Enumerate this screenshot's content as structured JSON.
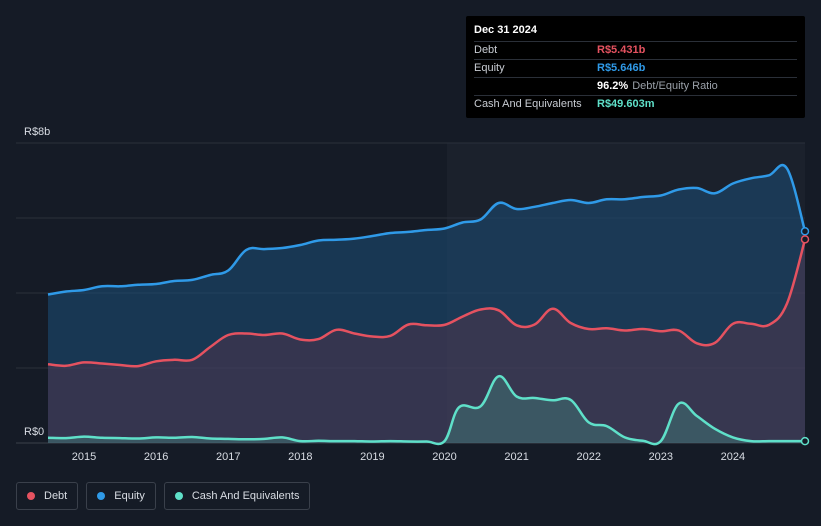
{
  "tooltip": {
    "date": "Dec 31 2024",
    "rows": [
      {
        "label": "Debt",
        "value": "R$5.431b",
        "color": "#e55260"
      },
      {
        "label": "Equity",
        "value": "R$5.646b",
        "color": "#2f9ae8"
      },
      {
        "label": "",
        "value": "96.2%",
        "suffix": "Debt/Equity Ratio",
        "color": "#ffffff"
      },
      {
        "label": "Cash And Equivalents",
        "value": "R$49.603m",
        "color": "#5fe0c9"
      }
    ]
  },
  "legend": [
    {
      "label": "Debt",
      "color": "#e55260"
    },
    {
      "label": "Equity",
      "color": "#2f9ae8"
    },
    {
      "label": "Cash And Equivalents",
      "color": "#5fe0c9"
    }
  ],
  "chart_data": {
    "type": "area",
    "ylabel_top": "R$8b",
    "ylabel_bottom": "R$0",
    "ylim": [
      0,
      8
    ],
    "xlim": [
      2014.5,
      2025.0
    ],
    "x_ticks": [
      "2015",
      "2016",
      "2017",
      "2018",
      "2019",
      "2020",
      "2021",
      "2022",
      "2023",
      "2024"
    ],
    "x_tick_values": [
      2015,
      2016,
      2017,
      2018,
      2019,
      2020,
      2021,
      2022,
      2023,
      2024
    ],
    "grid": true,
    "series": [
      {
        "name": "Equity",
        "color": "#2f9ae8",
        "points": [
          [
            2014.5,
            3.96
          ],
          [
            2014.75,
            4.04
          ],
          [
            2015.0,
            4.08
          ],
          [
            2015.25,
            4.18
          ],
          [
            2015.5,
            4.18
          ],
          [
            2015.75,
            4.22
          ],
          [
            2016.0,
            4.24
          ],
          [
            2016.25,
            4.32
          ],
          [
            2016.5,
            4.35
          ],
          [
            2016.75,
            4.48
          ],
          [
            2017.0,
            4.6
          ],
          [
            2017.25,
            5.15
          ],
          [
            2017.5,
            5.17
          ],
          [
            2017.75,
            5.2
          ],
          [
            2018.0,
            5.28
          ],
          [
            2018.25,
            5.4
          ],
          [
            2018.5,
            5.42
          ],
          [
            2018.75,
            5.45
          ],
          [
            2019.0,
            5.52
          ],
          [
            2019.25,
            5.6
          ],
          [
            2019.5,
            5.63
          ],
          [
            2019.75,
            5.68
          ],
          [
            2020.0,
            5.72
          ],
          [
            2020.25,
            5.88
          ],
          [
            2020.5,
            5.96
          ],
          [
            2020.75,
            6.4
          ],
          [
            2021.0,
            6.24
          ],
          [
            2021.25,
            6.3
          ],
          [
            2021.5,
            6.4
          ],
          [
            2021.75,
            6.48
          ],
          [
            2022.0,
            6.4
          ],
          [
            2022.25,
            6.5
          ],
          [
            2022.5,
            6.5
          ],
          [
            2022.75,
            6.56
          ],
          [
            2023.0,
            6.6
          ],
          [
            2023.25,
            6.76
          ],
          [
            2023.5,
            6.8
          ],
          [
            2023.75,
            6.66
          ],
          [
            2024.0,
            6.92
          ],
          [
            2024.25,
            7.06
          ],
          [
            2024.5,
            7.14
          ],
          [
            2024.75,
            7.32
          ],
          [
            2025.0,
            5.646
          ]
        ]
      },
      {
        "name": "Debt",
        "color": "#e55260",
        "points": [
          [
            2014.5,
            2.1
          ],
          [
            2014.75,
            2.06
          ],
          [
            2015.0,
            2.15
          ],
          [
            2015.25,
            2.12
          ],
          [
            2015.5,
            2.08
          ],
          [
            2015.75,
            2.05
          ],
          [
            2016.0,
            2.18
          ],
          [
            2016.25,
            2.22
          ],
          [
            2016.5,
            2.22
          ],
          [
            2016.75,
            2.56
          ],
          [
            2017.0,
            2.88
          ],
          [
            2017.25,
            2.92
          ],
          [
            2017.5,
            2.88
          ],
          [
            2017.75,
            2.92
          ],
          [
            2018.0,
            2.76
          ],
          [
            2018.25,
            2.77
          ],
          [
            2018.5,
            3.02
          ],
          [
            2018.75,
            2.92
          ],
          [
            2019.0,
            2.84
          ],
          [
            2019.25,
            2.86
          ],
          [
            2019.5,
            3.16
          ],
          [
            2019.75,
            3.14
          ],
          [
            2020.0,
            3.15
          ],
          [
            2020.25,
            3.37
          ],
          [
            2020.5,
            3.56
          ],
          [
            2020.75,
            3.54
          ],
          [
            2021.0,
            3.14
          ],
          [
            2021.25,
            3.16
          ],
          [
            2021.5,
            3.58
          ],
          [
            2021.75,
            3.2
          ],
          [
            2022.0,
            3.04
          ],
          [
            2022.25,
            3.06
          ],
          [
            2022.5,
            3.0
          ],
          [
            2022.75,
            3.04
          ],
          [
            2023.0,
            2.98
          ],
          [
            2023.25,
            3.0
          ],
          [
            2023.5,
            2.66
          ],
          [
            2023.75,
            2.67
          ],
          [
            2024.0,
            3.18
          ],
          [
            2024.25,
            3.18
          ],
          [
            2024.5,
            3.15
          ],
          [
            2024.75,
            3.72
          ],
          [
            2025.0,
            5.431
          ]
        ]
      },
      {
        "name": "Cash And Equivalents",
        "color": "#5fe0c9",
        "points": [
          [
            2014.5,
            0.14
          ],
          [
            2014.75,
            0.13
          ],
          [
            2015.0,
            0.17
          ],
          [
            2015.25,
            0.14
          ],
          [
            2015.5,
            0.13
          ],
          [
            2015.75,
            0.12
          ],
          [
            2016.0,
            0.15
          ],
          [
            2016.25,
            0.14
          ],
          [
            2016.5,
            0.16
          ],
          [
            2016.75,
            0.12
          ],
          [
            2017.0,
            0.11
          ],
          [
            2017.25,
            0.1
          ],
          [
            2017.5,
            0.11
          ],
          [
            2017.75,
            0.15
          ],
          [
            2018.0,
            0.05
          ],
          [
            2018.25,
            0.06
          ],
          [
            2018.5,
            0.05
          ],
          [
            2018.75,
            0.05
          ],
          [
            2019.0,
            0.04
          ],
          [
            2019.25,
            0.05
          ],
          [
            2019.5,
            0.04
          ],
          [
            2019.75,
            0.04
          ],
          [
            2020.0,
            0.05
          ],
          [
            2020.2,
            0.95
          ],
          [
            2020.5,
            0.98
          ],
          [
            2020.75,
            1.78
          ],
          [
            2021.0,
            1.24
          ],
          [
            2021.25,
            1.2
          ],
          [
            2021.5,
            1.14
          ],
          [
            2021.75,
            1.15
          ],
          [
            2022.0,
            0.55
          ],
          [
            2022.25,
            0.45
          ],
          [
            2022.5,
            0.15
          ],
          [
            2022.75,
            0.06
          ],
          [
            2023.0,
            0.05
          ],
          [
            2023.25,
            1.05
          ],
          [
            2023.5,
            0.72
          ],
          [
            2023.75,
            0.38
          ],
          [
            2024.0,
            0.15
          ],
          [
            2024.25,
            0.05
          ],
          [
            2024.5,
            0.05
          ],
          [
            2024.75,
            0.05
          ],
          [
            2025.0,
            0.05
          ]
        ]
      }
    ]
  }
}
